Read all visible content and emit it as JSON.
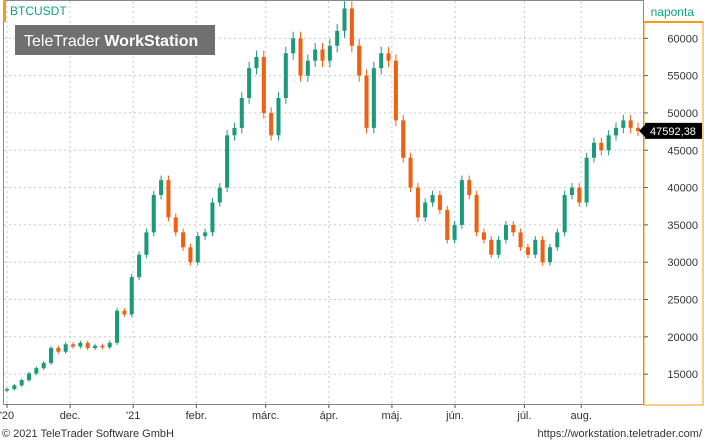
{
  "header": {
    "symbol": "BTCUSDT",
    "period": "naponta"
  },
  "brand_badge": {
    "part1": "TeleTrader ",
    "part2": "WorkStation"
  },
  "footer": {
    "copyright": "© 2021 TeleTrader Software GmbH",
    "url": "https://workstation.teletrader.com/"
  },
  "last_price_label": "47592,38",
  "colors": {
    "up": "#1a9a7a",
    "down": "#f06010",
    "grid": "#c8c8c8",
    "frame": "#888888",
    "accent_orange": "#f39c12",
    "badge_bg": "#707070",
    "price_bg": "#000000"
  },
  "chart_data": {
    "type": "candlestick",
    "ylim": [
      11000,
      65000
    ],
    "y_ticks": [
      15000,
      20000,
      25000,
      30000,
      35000,
      40000,
      45000,
      50000,
      55000,
      60000
    ],
    "y_tick_labels": [
      "15000",
      "20000",
      "25000",
      "30000",
      "35000",
      "40000",
      "45000",
      "50000",
      "55000",
      "60000"
    ],
    "x_ticks": [
      {
        "label": "'20",
        "pos": 0.0
      },
      {
        "label": "dec.",
        "pos": 0.1
      },
      {
        "label": "'21",
        "pos": 0.2
      },
      {
        "label": "febr.",
        "pos": 0.3
      },
      {
        "label": "márc.",
        "pos": 0.41
      },
      {
        "label": "ápr.",
        "pos": 0.51
      },
      {
        "label": "máj.",
        "pos": 0.61
      },
      {
        "label": "jún.",
        "pos": 0.71
      },
      {
        "label": "júl.",
        "pos": 0.82
      },
      {
        "label": "aug.",
        "pos": 0.91
      }
    ],
    "closes": [
      13000,
      13500,
      14200,
      15100,
      15800,
      16500,
      18500,
      18000,
      19000,
      18700,
      19200,
      18500,
      18800,
      18600,
      19200,
      23500,
      23000,
      28000,
      31000,
      34000,
      39000,
      41000,
      36000,
      34000,
      32000,
      30000,
      33500,
      34000,
      38000,
      40000,
      47000,
      48000,
      52000,
      56000,
      57500,
      50000,
      47000,
      52000,
      58000,
      60000,
      55000,
      57000,
      58500,
      57000,
      59000,
      61000,
      64000,
      59000,
      55000,
      48000,
      56000,
      58000,
      57000,
      49000,
      44000,
      40000,
      36000,
      38000,
      39000,
      37000,
      33000,
      35000,
      41000,
      39000,
      34000,
      33000,
      31000,
      33000,
      35000,
      34000,
      32000,
      31000,
      33000,
      30000,
      32000,
      34000,
      39000,
      40000,
      38000,
      44000,
      46000,
      45000,
      47000,
      48000,
      49000,
      48000,
      47600
    ]
  }
}
